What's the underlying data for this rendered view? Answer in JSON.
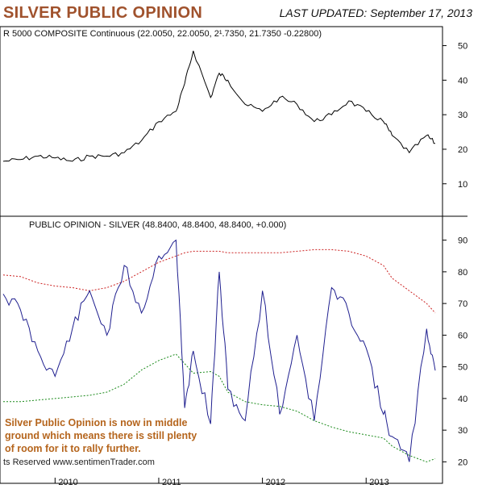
{
  "header": {
    "title": "SILVER PUBLIC OPINION",
    "updated": "LAST UPDATED:  September 17, 2013"
  },
  "colors": {
    "title": "#a0522d",
    "price_line": "#000000",
    "opinion_line": "#1f1f8f",
    "upper_band": "#cc2222",
    "lower_band": "#1a8a1a",
    "note": "#b5651d"
  },
  "annotation": {
    "lines": [
      "Silver Public Opinion is now in middle",
      "ground which means there is still plenty",
      "of room for it to rally further."
    ]
  },
  "copyright": "ts Reserved  www.sentimenTrader.com",
  "chart_data": [
    {
      "type": "line",
      "title": "R 5000 COMPOSITE Continuous (22.0050, 22.0050, 2¹.7350, 21.7350 -0.22800)",
      "ylim": [
        2,
        52
      ],
      "yticks": [
        10,
        20,
        30,
        40,
        50
      ],
      "x": [
        "2009-07",
        "2009-09",
        "2009-11",
        "2010-01",
        "2010-03",
        "2010-05",
        "2010-07",
        "2010-09",
        "2010-11",
        "2011-01",
        "2011-03",
        "2011-04",
        "2011-05",
        "2011-07",
        "2011-08",
        "2011-09",
        "2011-11",
        "2012-01",
        "2012-03",
        "2012-05",
        "2012-07",
        "2012-09",
        "2012-11",
        "2013-01",
        "2013-03",
        "2013-04",
        "2013-06",
        "2013-08",
        "2013-09"
      ],
      "series": [
        {
          "values": [
            16.5,
            17,
            18,
            17.5,
            16.5,
            18,
            18,
            19,
            22.5,
            28,
            31,
            39,
            48.5,
            35,
            42,
            40,
            33,
            31,
            35,
            33,
            28,
            30,
            34,
            31,
            28,
            24,
            19,
            24,
            21.7
          ]
        }
      ]
    },
    {
      "type": "line",
      "title": "PUBLIC OPINION - SILVER (48.8400, 48.8400, 48.8400, +0.000)",
      "ylim": [
        15,
        95
      ],
      "yticks": [
        20,
        30,
        40,
        50,
        60,
        70,
        80,
        90
      ],
      "x": [
        "2009-07",
        "2009-09",
        "2009-11",
        "2010-01",
        "2010-03",
        "2010-05",
        "2010-07",
        "2010-09",
        "2010-11",
        "2011-01",
        "2011-03",
        "2011-04",
        "2011-05",
        "2011-07",
        "2011-08",
        "2011-09",
        "2011-11",
        "2012-01",
        "2012-03",
        "2012-05",
        "2012-07",
        "2012-09",
        "2012-11",
        "2013-01",
        "2013-03",
        "2013-04",
        "2013-06",
        "2013-08",
        "2013-09"
      ],
      "xticks": [
        "2010",
        "2011",
        "2012",
        "2013"
      ],
      "series": [
        {
          "name": "opinion",
          "values": [
            73,
            68,
            55,
            47,
            62,
            74,
            60,
            82,
            67,
            85,
            90,
            37,
            55,
            32,
            80,
            43,
            33,
            74,
            35,
            60,
            33,
            75,
            67,
            56,
            35,
            28,
            20,
            62,
            48.84
          ]
        },
        {
          "name": "upper band",
          "values": [
            79,
            78.5,
            76.5,
            75.5,
            75,
            74,
            75,
            77,
            80,
            83,
            85,
            86,
            86.5,
            86.5,
            86.5,
            86,
            86,
            86,
            86,
            86.5,
            87,
            87,
            86.5,
            85,
            82,
            78,
            74,
            70,
            67
          ]
        },
        {
          "name": "lower band",
          "values": [
            39,
            39,
            39.5,
            40,
            40.5,
            41,
            42,
            44.5,
            49,
            52,
            54,
            51,
            48,
            48.5,
            47,
            42,
            39,
            38,
            37.5,
            36,
            33,
            31,
            29.5,
            28.5,
            27.5,
            25,
            22,
            20,
            21
          ]
        }
      ]
    }
  ]
}
